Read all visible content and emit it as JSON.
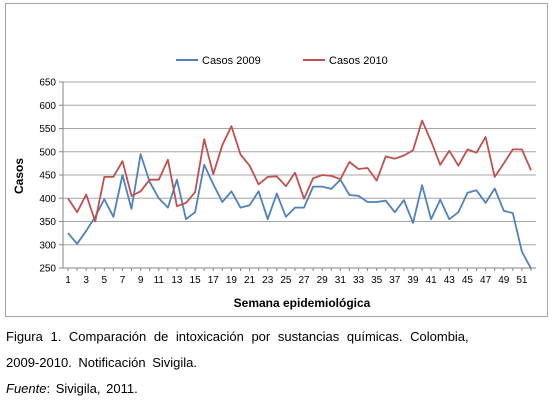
{
  "chart_data": {
    "type": "line",
    "x": [
      1,
      2,
      3,
      4,
      5,
      6,
      7,
      8,
      9,
      10,
      11,
      12,
      13,
      14,
      15,
      16,
      17,
      18,
      19,
      20,
      21,
      22,
      23,
      24,
      25,
      26,
      27,
      28,
      29,
      30,
      31,
      32,
      33,
      34,
      35,
      36,
      37,
      38,
      39,
      40,
      41,
      42,
      43,
      44,
      45,
      46,
      47,
      48,
      49,
      50,
      51,
      52
    ],
    "x_tick_labels": [
      "1",
      "3",
      "5",
      "7",
      "9",
      "11",
      "13",
      "15",
      "17",
      "19",
      "21",
      "23",
      "25",
      "27",
      "29",
      "31",
      "33",
      "35",
      "37",
      "39",
      "41",
      "43",
      "45",
      "47",
      "49",
      "51"
    ],
    "y_tick_labels": [
      "250",
      "300",
      "350",
      "400",
      "450",
      "500",
      "550",
      "600",
      "650"
    ],
    "ylim": [
      250,
      650
    ],
    "xlabel": "Semana epidemiológica",
    "ylabel": "Casos",
    "legend_position": "top",
    "grid": "horizontal",
    "series": [
      {
        "name": "Casos 2009",
        "color": "#4f81bd",
        "values": [
          325,
          302,
          330,
          360,
          398,
          360,
          450,
          377,
          495,
          435,
          400,
          380,
          440,
          355,
          370,
          472,
          430,
          392,
          415,
          380,
          385,
          415,
          355,
          410,
          360,
          380,
          380,
          425,
          425,
          420,
          440,
          407,
          405,
          392,
          392,
          395,
          370,
          396,
          347,
          428,
          355,
          397,
          355,
          370,
          412,
          417,
          390,
          421,
          373,
          368,
          285,
          249
        ]
      },
      {
        "name": "Casos 2010",
        "color": "#c0504d",
        "values": [
          400,
          370,
          408,
          350,
          446,
          446,
          480,
          405,
          415,
          440,
          440,
          483,
          383,
          390,
          413,
          527,
          452,
          514,
          555,
          494,
          470,
          430,
          446,
          447,
          426,
          455,
          399,
          443,
          450,
          448,
          441,
          478,
          463,
          465,
          438,
          490,
          485,
          492,
          503,
          567,
          523,
          472,
          502,
          470,
          505,
          498,
          532,
          446,
          475,
          505,
          505,
          460
        ]
      }
    ]
  },
  "caption": {
    "line1": "Figura 1. Comparación de intoxicación por sustancias químicas. Colombia,",
    "line2": "2009-2010. Notificación Sivigila.",
    "source_label": "Fuente",
    "source_text": ": Sivigila, 2011."
  }
}
